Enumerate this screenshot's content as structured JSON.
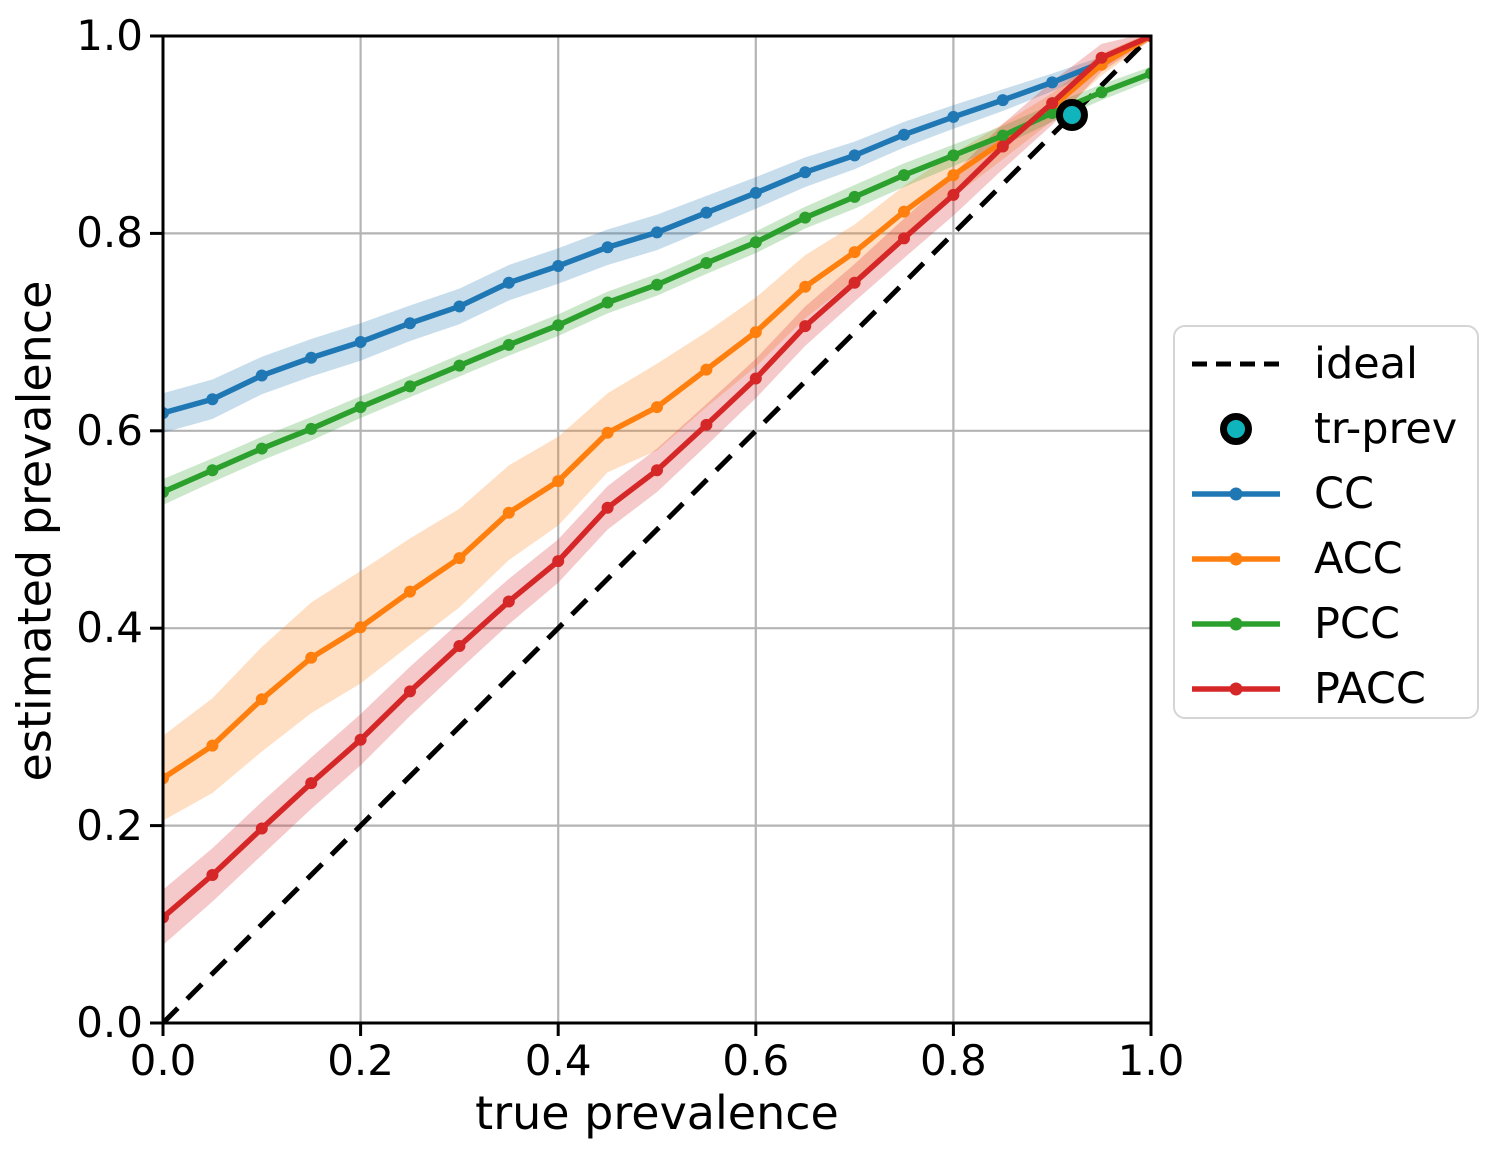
{
  "chart_data": {
    "type": "line",
    "title": "",
    "xlabel": "true prevalence",
    "ylabel": "estimated prevalence",
    "xlim": [
      0.0,
      1.0
    ],
    "ylim": [
      0.0,
      1.0
    ],
    "xtick_labels": [
      "0.0",
      "0.2",
      "0.4",
      "0.6",
      "0.8",
      "1.0"
    ],
    "ytick_labels": [
      "0.0",
      "0.2",
      "0.4",
      "0.6",
      "0.8",
      "1.0"
    ],
    "grid": true,
    "grid_color": "#b4b4b4",
    "legend_position": "right-outside",
    "x": [
      0.0,
      0.05,
      0.1,
      0.15,
      0.2,
      0.25,
      0.3,
      0.35,
      0.4,
      0.45,
      0.5,
      0.55,
      0.6,
      0.65,
      0.7,
      0.75,
      0.8,
      0.85,
      0.9,
      0.95,
      1.0
    ],
    "series": [
      {
        "name": "CC",
        "color": "#1f77b4",
        "values": [
          0.618,
          0.632,
          0.656,
          0.674,
          0.69,
          0.709,
          0.726,
          0.75,
          0.767,
          0.786,
          0.801,
          0.821,
          0.841,
          0.862,
          0.879,
          0.9,
          0.918,
          0.935,
          0.953,
          0.973,
          1.0
        ],
        "band_halfwidth": [
          0.02,
          0.02,
          0.019,
          0.019,
          0.019,
          0.018,
          0.018,
          0.018,
          0.018,
          0.018,
          0.018,
          0.017,
          0.016,
          0.015,
          0.014,
          0.013,
          0.012,
          0.011,
          0.009,
          0.006,
          0.002
        ]
      },
      {
        "name": "ACC",
        "color": "#ff7f0e",
        "values": [
          0.248,
          0.281,
          0.328,
          0.37,
          0.401,
          0.437,
          0.471,
          0.517,
          0.549,
          0.598,
          0.624,
          0.662,
          0.7,
          0.746,
          0.781,
          0.822,
          0.859,
          0.893,
          0.928,
          0.971,
          1.0
        ],
        "band_halfwidth": [
          0.043,
          0.048,
          0.053,
          0.056,
          0.057,
          0.054,
          0.05,
          0.048,
          0.045,
          0.04,
          0.044,
          0.038,
          0.035,
          0.032,
          0.028,
          0.026,
          0.022,
          0.018,
          0.014,
          0.011,
          0.004
        ]
      },
      {
        "name": "PCC",
        "color": "#2ca02c",
        "values": [
          0.538,
          0.56,
          0.582,
          0.602,
          0.624,
          0.645,
          0.666,
          0.687,
          0.707,
          0.73,
          0.748,
          0.77,
          0.791,
          0.816,
          0.837,
          0.859,
          0.879,
          0.899,
          0.922,
          0.943,
          0.962
        ],
        "band_halfwidth": [
          0.013,
          0.012,
          0.012,
          0.012,
          0.011,
          0.011,
          0.011,
          0.011,
          0.011,
          0.011,
          0.011,
          0.011,
          0.011,
          0.011,
          0.012,
          0.012,
          0.011,
          0.01,
          0.009,
          0.008,
          0.007
        ]
      },
      {
        "name": "PACC",
        "color": "#d62728",
        "values": [
          0.107,
          0.15,
          0.197,
          0.243,
          0.287,
          0.336,
          0.382,
          0.427,
          0.468,
          0.522,
          0.56,
          0.606,
          0.653,
          0.706,
          0.75,
          0.795,
          0.839,
          0.888,
          0.932,
          0.978,
          1.0
        ],
        "band_halfwidth": [
          0.028,
          0.027,
          0.027,
          0.026,
          0.026,
          0.025,
          0.024,
          0.023,
          0.022,
          0.022,
          0.022,
          0.021,
          0.02,
          0.02,
          0.019,
          0.02,
          0.021,
          0.023,
          0.022,
          0.014,
          0.004
        ]
      }
    ],
    "ideal": {
      "label": "ideal",
      "x": [
        0.0,
        1.0
      ],
      "y": [
        0.0,
        1.0
      ],
      "style": "dashed",
      "color": "#000000"
    },
    "tr_prev": {
      "label": "tr-prev",
      "x": 0.92,
      "y": 0.92,
      "fill": "#10b4bc",
      "edge": "#000000"
    },
    "legend_entries": [
      "ideal",
      "tr-prev",
      "CC",
      "ACC",
      "PCC",
      "PACC"
    ],
    "band_opacity": 0.25
  }
}
